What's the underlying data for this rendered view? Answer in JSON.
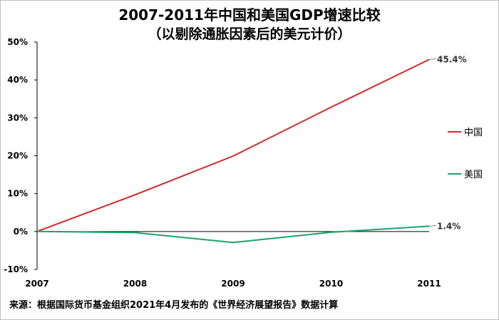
{
  "chart_data": {
    "type": "line",
    "title": "2007-2011年中国和美国GDP增速比较",
    "subtitle": "（以剔除通胀因素后的美元计价）",
    "x": [
      "2007",
      "2008",
      "2009",
      "2010",
      "2011"
    ],
    "ylim": [
      -10,
      50
    ],
    "yticks": [
      "-10%",
      "0%",
      "10%",
      "20%",
      "30%",
      "40%",
      "50%"
    ],
    "ytick_values": [
      -10,
      0,
      10,
      20,
      30,
      40,
      50
    ],
    "series": [
      {
        "name": "中国",
        "color": "#d62728",
        "values": [
          0,
          9.7,
          19.9,
          32.8,
          45.4
        ],
        "end_label": "45.4%"
      },
      {
        "name": "美国",
        "color": "#1aa36a",
        "values": [
          0,
          -0.3,
          -2.9,
          -0.2,
          1.4
        ],
        "end_label": "1.4%"
      }
    ],
    "legend_position": "right",
    "grid": false
  },
  "source": "来源：根据国际货币基金组织2021年4月发布的《世界经济展望报告》数据计算"
}
